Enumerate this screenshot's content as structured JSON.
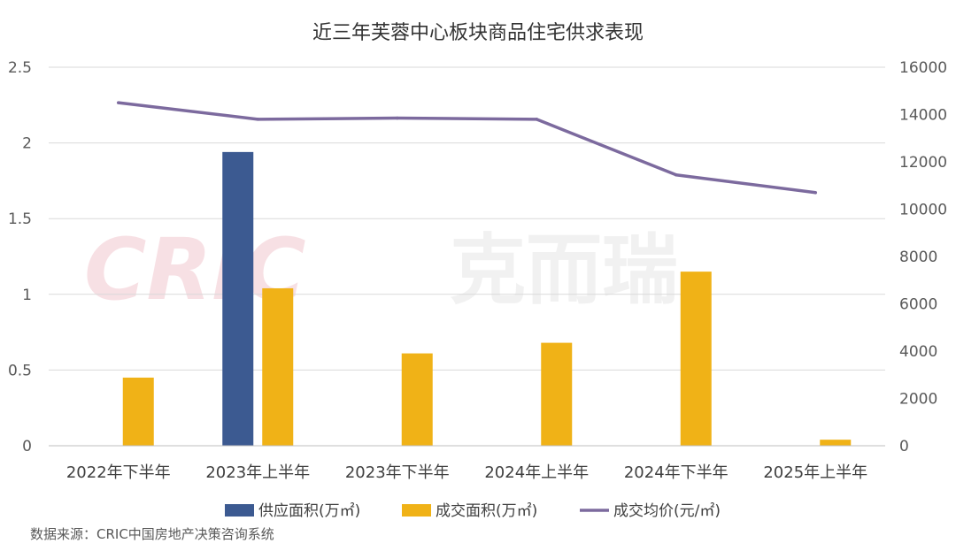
{
  "chart_data": {
    "type": "bar",
    "title": "近三年芙蓉中心板块商品住宅供求表现",
    "categories": [
      "2022年下半年",
      "2023年上半年",
      "2023年下半年",
      "2024年上半年",
      "2024年下半年",
      "2025年上半年"
    ],
    "series": [
      {
        "name": "供应面积(万㎡)",
        "type": "bar",
        "axis": "left",
        "color": "#3c5a91",
        "values": [
          0,
          1.94,
          0,
          0,
          0,
          0
        ]
      },
      {
        "name": "成交面积(万㎡)",
        "type": "bar",
        "axis": "left",
        "color": "#f0b217",
        "values": [
          0.45,
          1.04,
          0.61,
          0.68,
          1.15,
          0.04
        ]
      },
      {
        "name": "成交均价(元/㎡)",
        "type": "line",
        "axis": "right",
        "color": "#7c6a9e",
        "values": [
          14500,
          13800,
          13850,
          13800,
          11450,
          10700
        ]
      }
    ],
    "y_left": {
      "ylim": [
        0,
        2.5
      ],
      "ticks": [
        "0",
        "0.5",
        "1",
        "1.5",
        "2",
        "2.5"
      ]
    },
    "y_right": {
      "ylim": [
        0,
        16000
      ],
      "ticks": [
        "0",
        "2000",
        "4000",
        "6000",
        "8000",
        "10000",
        "12000",
        "14000",
        "16000"
      ]
    },
    "grid": true,
    "legend": "bottom",
    "source": "数据来源：CRIC中国房地产决策咨询系统",
    "watermark": {
      "latin": "CRIC",
      "cjk": "克而瑞"
    }
  }
}
